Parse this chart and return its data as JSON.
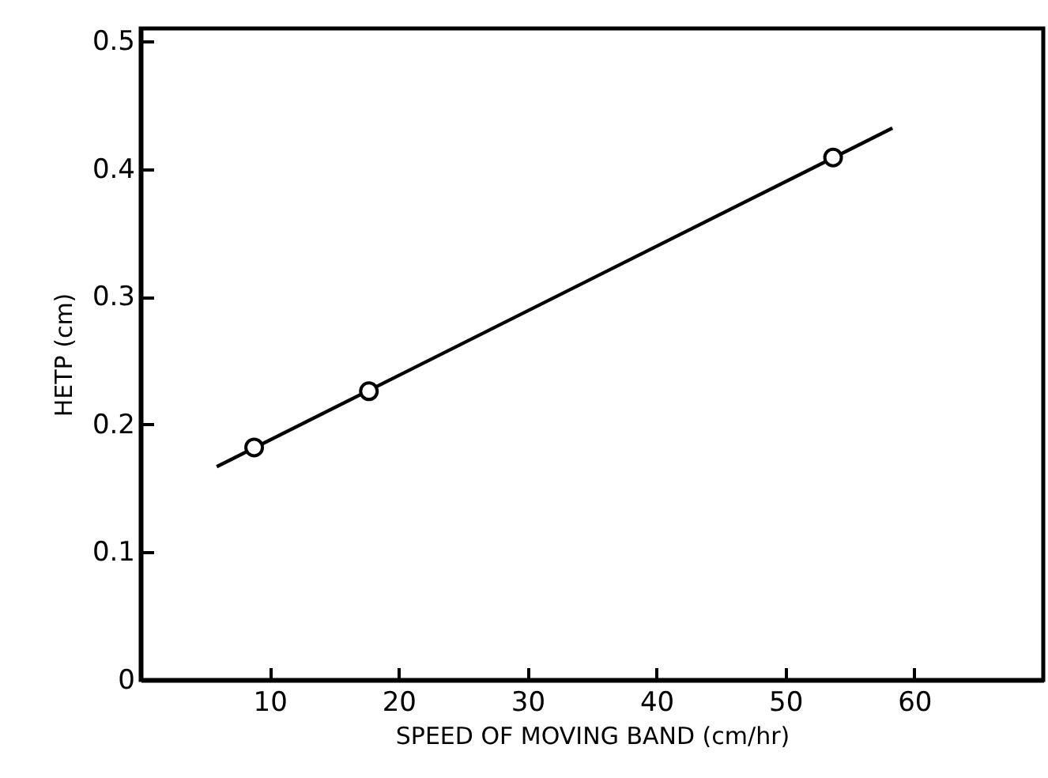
{
  "chart_data": {
    "type": "scatter",
    "xlabel": "SPEED OF MOVING BAND  (cm/hr)",
    "ylabel": "HETP (cm)",
    "xlim": [
      0,
      70
    ],
    "ylim": [
      0,
      0.51
    ],
    "xticks": [
      10,
      20,
      30,
      40,
      50,
      60
    ],
    "yticks": [
      0,
      0.1,
      0.2,
      0.3,
      0.4,
      0.5
    ],
    "grid": false,
    "marker": "circle",
    "series": [
      {
        "color": "#000000",
        "x": [
          8.8,
          17.7,
          53.7
        ],
        "values": [
          0.182,
          0.226,
          0.409
        ]
      },
      {
        "type": "line",
        "marker": "none",
        "color": "#000000",
        "x": [
          5.9,
          58.3
        ],
        "values": [
          0.167,
          0.432
        ]
      }
    ]
  }
}
